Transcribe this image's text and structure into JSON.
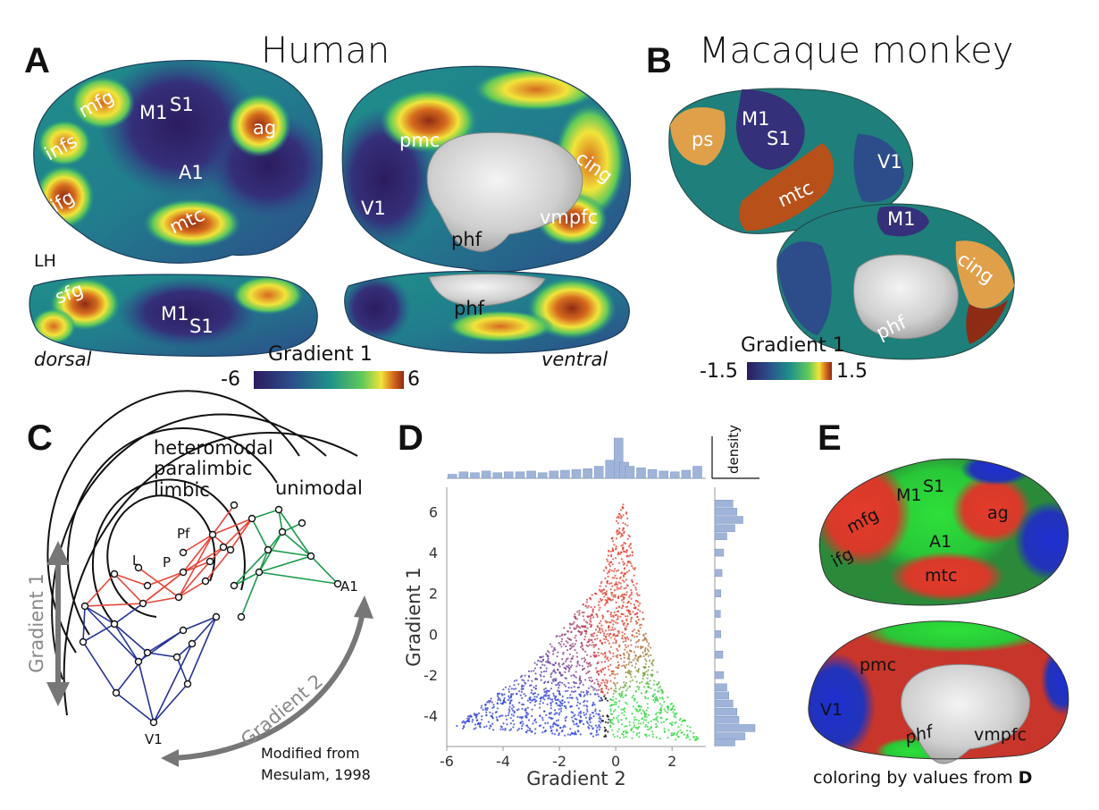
{
  "panels": {
    "a": {
      "letter": "A",
      "title": "Human",
      "lh": "LH",
      "view_dorsal": "dorsal",
      "view_ventral": "ventral",
      "cbar": {
        "title": "Gradient 1",
        "min": "-6",
        "max": "6"
      },
      "regions": [
        "mfg",
        "M1",
        "S1",
        "ag",
        "infs",
        "A1",
        "ifg",
        "mtc",
        "pmc",
        "cing",
        "V1",
        "vmpfc",
        "phf",
        "sfg"
      ]
    },
    "b": {
      "letter": "B",
      "title": "Macaque monkey",
      "cbar": {
        "title": "Gradient 1",
        "min": "-1.5",
        "max": "1.5"
      },
      "regions": [
        "ps",
        "M1",
        "S1",
        "V1",
        "mtc",
        "cing",
        "phf"
      ]
    },
    "c": {
      "letter": "C",
      "rings": [
        "heteromodal",
        "paralimbic",
        "limbic",
        "unimodal"
      ],
      "nodes": [
        "L",
        "P",
        "Pf",
        "A1",
        "V1"
      ],
      "axis1": "Gradient 1",
      "axis2": "Gradient 2",
      "credit_line1": "Modified from",
      "credit_line2": "Mesulam, 1998"
    },
    "d": {
      "letter": "D",
      "density_label": "density"
    },
    "e": {
      "letter": "E",
      "regions": [
        "mfg",
        "M1",
        "S1",
        "ag",
        "ifg",
        "A1",
        "mtc",
        "pmc",
        "V1",
        "phf",
        "vmpfc"
      ],
      "caption_text": "coloring by values from ",
      "caption_ref": "D"
    }
  },
  "colors": {
    "viridis_dark": "#3b1f6b",
    "teal": "#1f8f8a",
    "green": "#5ec85a",
    "yellow": "#f2e43a",
    "orange": "#d66a1e",
    "rust": "#8e2b14",
    "network_red": "#e8463a",
    "network_green": "#1a9a4c",
    "network_blue": "#253494",
    "hist_blue": "#9fb4d8",
    "arrow_gray": "#777777"
  },
  "chart_data": {
    "type": "scatter",
    "xlabel": "Gradient 2",
    "ylabel": "Gradient 1",
    "xlim": [
      -6,
      3.2
    ],
    "ylim": [
      -5.5,
      7.2
    ],
    "xticks": [
      "-6",
      "-4",
      "-2",
      "0",
      "2"
    ],
    "yticks": [
      "6",
      "4",
      "2",
      "0",
      "-2",
      "-4"
    ],
    "grid": false,
    "color_encoding": {
      "low_gradient2": "#2a3bd6",
      "high_gradient1": "#e33b2b",
      "high_gradient2": "#2cd63a"
    },
    "outline": [
      {
        "x": 0.3,
        "y": 6.8
      },
      {
        "x": 0.6,
        "y": 4.0
      },
      {
        "x": 1.1,
        "y": 0.0
      },
      {
        "x": 1.8,
        "y": -3.0
      },
      {
        "x": 3.0,
        "y": -5.2
      },
      {
        "x": -1.5,
        "y": -5.0
      },
      {
        "x": -5.8,
        "y": -4.6
      },
      {
        "x": -3.0,
        "y": -1.6
      },
      {
        "x": -0.6,
        "y": 2.4
      },
      {
        "x": 0.1,
        "y": 6.0
      }
    ],
    "x_density": {
      "bins": [
        -5.8,
        -5.4,
        -5.0,
        -4.6,
        -4.2,
        -3.8,
        -3.4,
        -3.0,
        -2.6,
        -2.2,
        -1.8,
        -1.4,
        -1.0,
        -0.6,
        -0.2,
        0.1,
        0.3,
        0.5,
        0.9,
        1.3,
        1.7,
        2.1,
        2.5,
        2.9
      ],
      "counts": [
        0.1,
        0.16,
        0.14,
        0.18,
        0.14,
        0.16,
        0.16,
        0.18,
        0.14,
        0.18,
        0.2,
        0.22,
        0.24,
        0.3,
        0.45,
        1.0,
        0.4,
        0.3,
        0.26,
        0.22,
        0.18,
        0.16,
        0.2,
        0.3
      ]
    },
    "y_density": {
      "bins": [
        6.4,
        6.0,
        5.6,
        5.2,
        4.8,
        4.0,
        3.0,
        2.0,
        1.0,
        0.0,
        -1.0,
        -2.0,
        -2.6,
        -3.0,
        -3.4,
        -3.8,
        -4.2,
        -4.6,
        -5.0,
        -5.3
      ],
      "counts": [
        0.45,
        0.55,
        0.7,
        0.5,
        0.3,
        0.22,
        0.18,
        0.15,
        0.14,
        0.15,
        0.2,
        0.22,
        0.3,
        0.35,
        0.45,
        0.55,
        0.6,
        1.0,
        0.75,
        0.5
      ]
    }
  }
}
